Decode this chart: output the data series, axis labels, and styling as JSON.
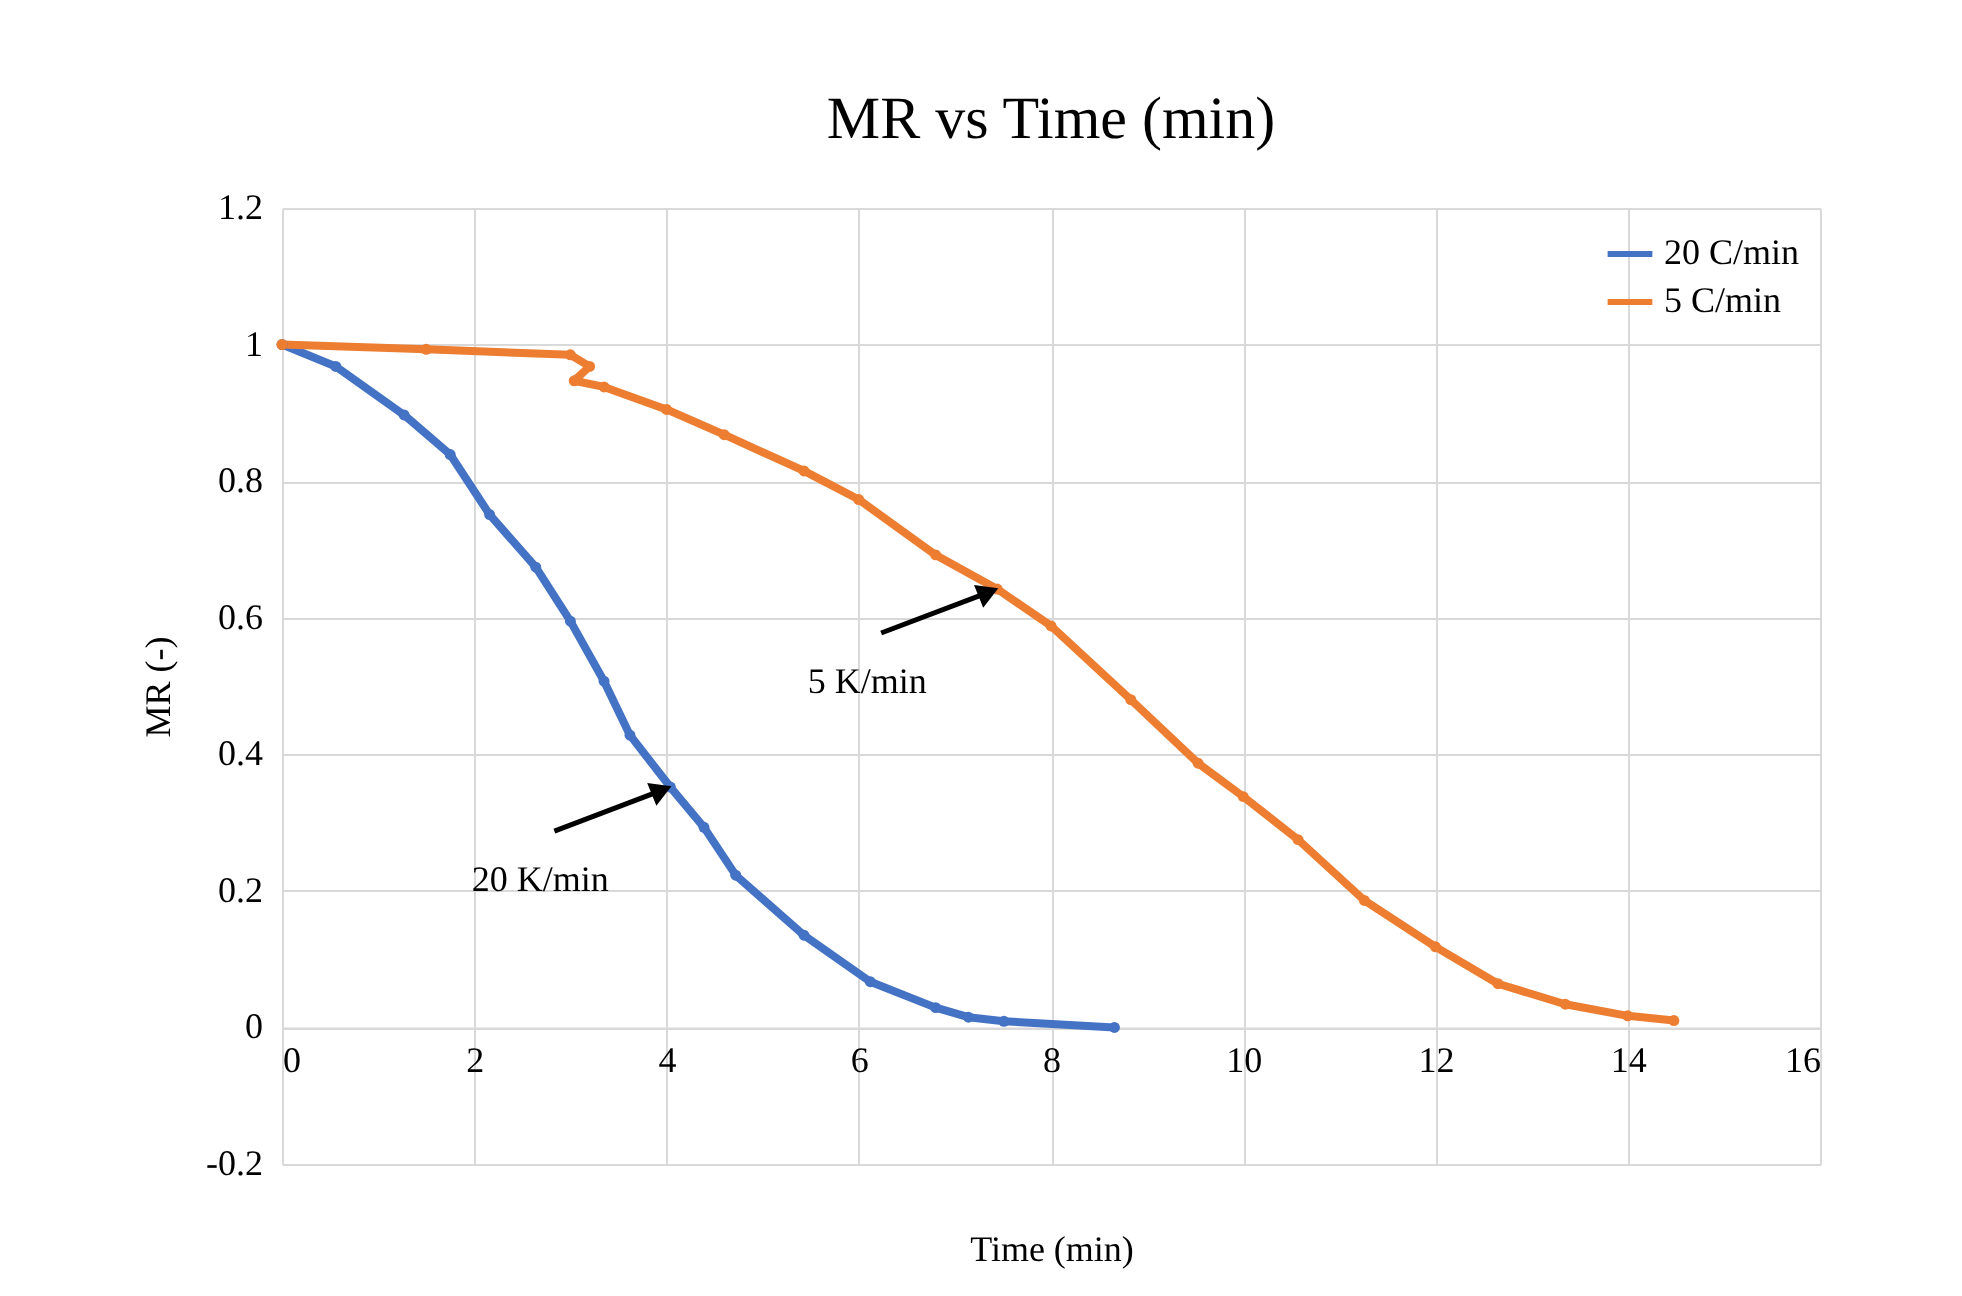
{
  "chart_data": {
    "type": "line",
    "title": "MR vs Time (min)",
    "xlabel": "Time (min)",
    "ylabel": "MR (-)",
    "xlim": [
      0,
      16
    ],
    "xticks": [
      0,
      2,
      4,
      6,
      8,
      10,
      12,
      14,
      16
    ],
    "ylim": [
      -0.2,
      1.2
    ],
    "yticks": [
      -0.2,
      0,
      0.2,
      0.4,
      0.6,
      0.8,
      1,
      1.2
    ],
    "grid": true,
    "legend": "top right",
    "marker": "circle",
    "line_style": "solid",
    "series": [
      {
        "name": "20 C/min",
        "color": "#4472c4",
        "x": [
          0,
          0.56,
          1.27,
          1.75,
          2.16,
          2.64,
          3.0,
          3.35,
          3.62,
          4.04,
          4.39,
          4.72,
          5.43,
          6.12,
          6.8,
          7.14,
          7.51,
          8.66
        ],
        "values": [
          1,
          0.968,
          0.897,
          0.839,
          0.751,
          0.674,
          0.595,
          0.507,
          0.428,
          0.352,
          0.293,
          0.223,
          0.135,
          0.067,
          0.029,
          0.015,
          0.009,
          0.0
        ]
      },
      {
        "name": "5 C/min",
        "color": "#ed7d31",
        "x": [
          0,
          1.5,
          3.0,
          3.2,
          3.04,
          3.35,
          4.0,
          4.6,
          5.43,
          6.0,
          6.8,
          7.44,
          8.0,
          8.83,
          9.53,
          10.0,
          10.57,
          11.26,
          12.0,
          12.65,
          13.35,
          14.0,
          14.48
        ],
        "values": [
          1,
          0.993,
          0.985,
          0.968,
          0.947,
          0.938,
          0.905,
          0.868,
          0.815,
          0.773,
          0.692,
          0.642,
          0.588,
          0.48,
          0.387,
          0.338,
          0.275,
          0.186,
          0.118,
          0.064,
          0.034,
          0.017,
          0.01
        ]
      }
    ],
    "annotations": [
      {
        "text": "5 K/min",
        "x": 7.44,
        "y": 0.642
      },
      {
        "text": "20 K/min",
        "x": 4.04,
        "y": 0.352
      }
    ]
  }
}
